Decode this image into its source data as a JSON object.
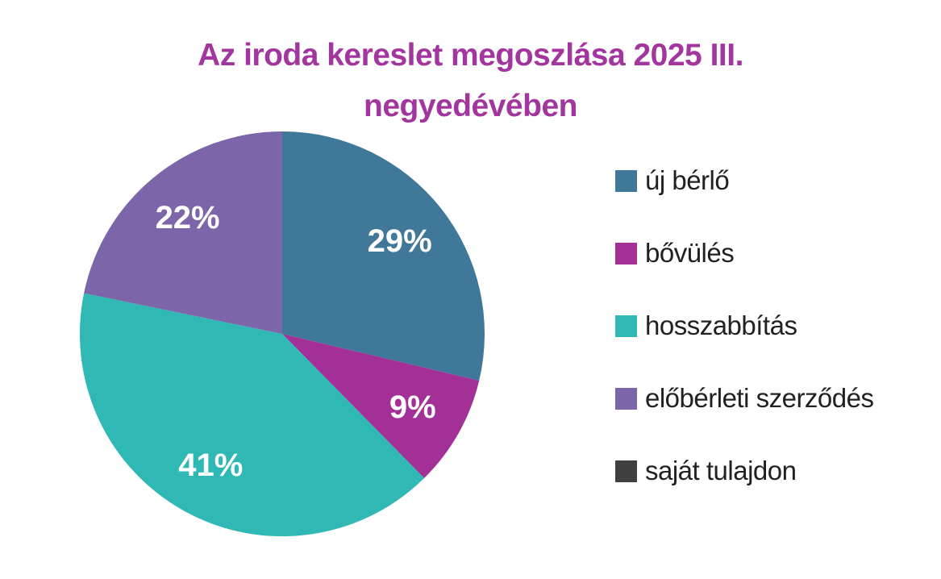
{
  "title": {
    "text": "Az iroda kereslet megoszlása 2025 III. negyedévében",
    "color": "#A3359E"
  },
  "chart_data": {
    "type": "pie",
    "title": "Az iroda kereslet megoszlása 2025 III. negyedévében",
    "categories": [
      "új bérlő",
      "bővülés",
      "hosszabbítás",
      "előbérleti szerződés",
      "saját tulajdon"
    ],
    "values": [
      29,
      9,
      41,
      22,
      0
    ],
    "unit": "%",
    "labels": [
      "29%",
      "9%",
      "41%",
      "22%",
      ""
    ],
    "slugs": [
      "uj-berlo",
      "bovules",
      "hosszabbitas",
      "eloberleti-szerzodes",
      "sajat-tulajdon"
    ],
    "colors": [
      "#3F7898",
      "#A23096",
      "#2FB8B4",
      "#7C65A9",
      "#404040"
    ],
    "label_color": "#FFFFFF",
    "legend_position": "right",
    "start_angle": 0,
    "direction": "clockwise",
    "background": "#FFFFFF"
  }
}
